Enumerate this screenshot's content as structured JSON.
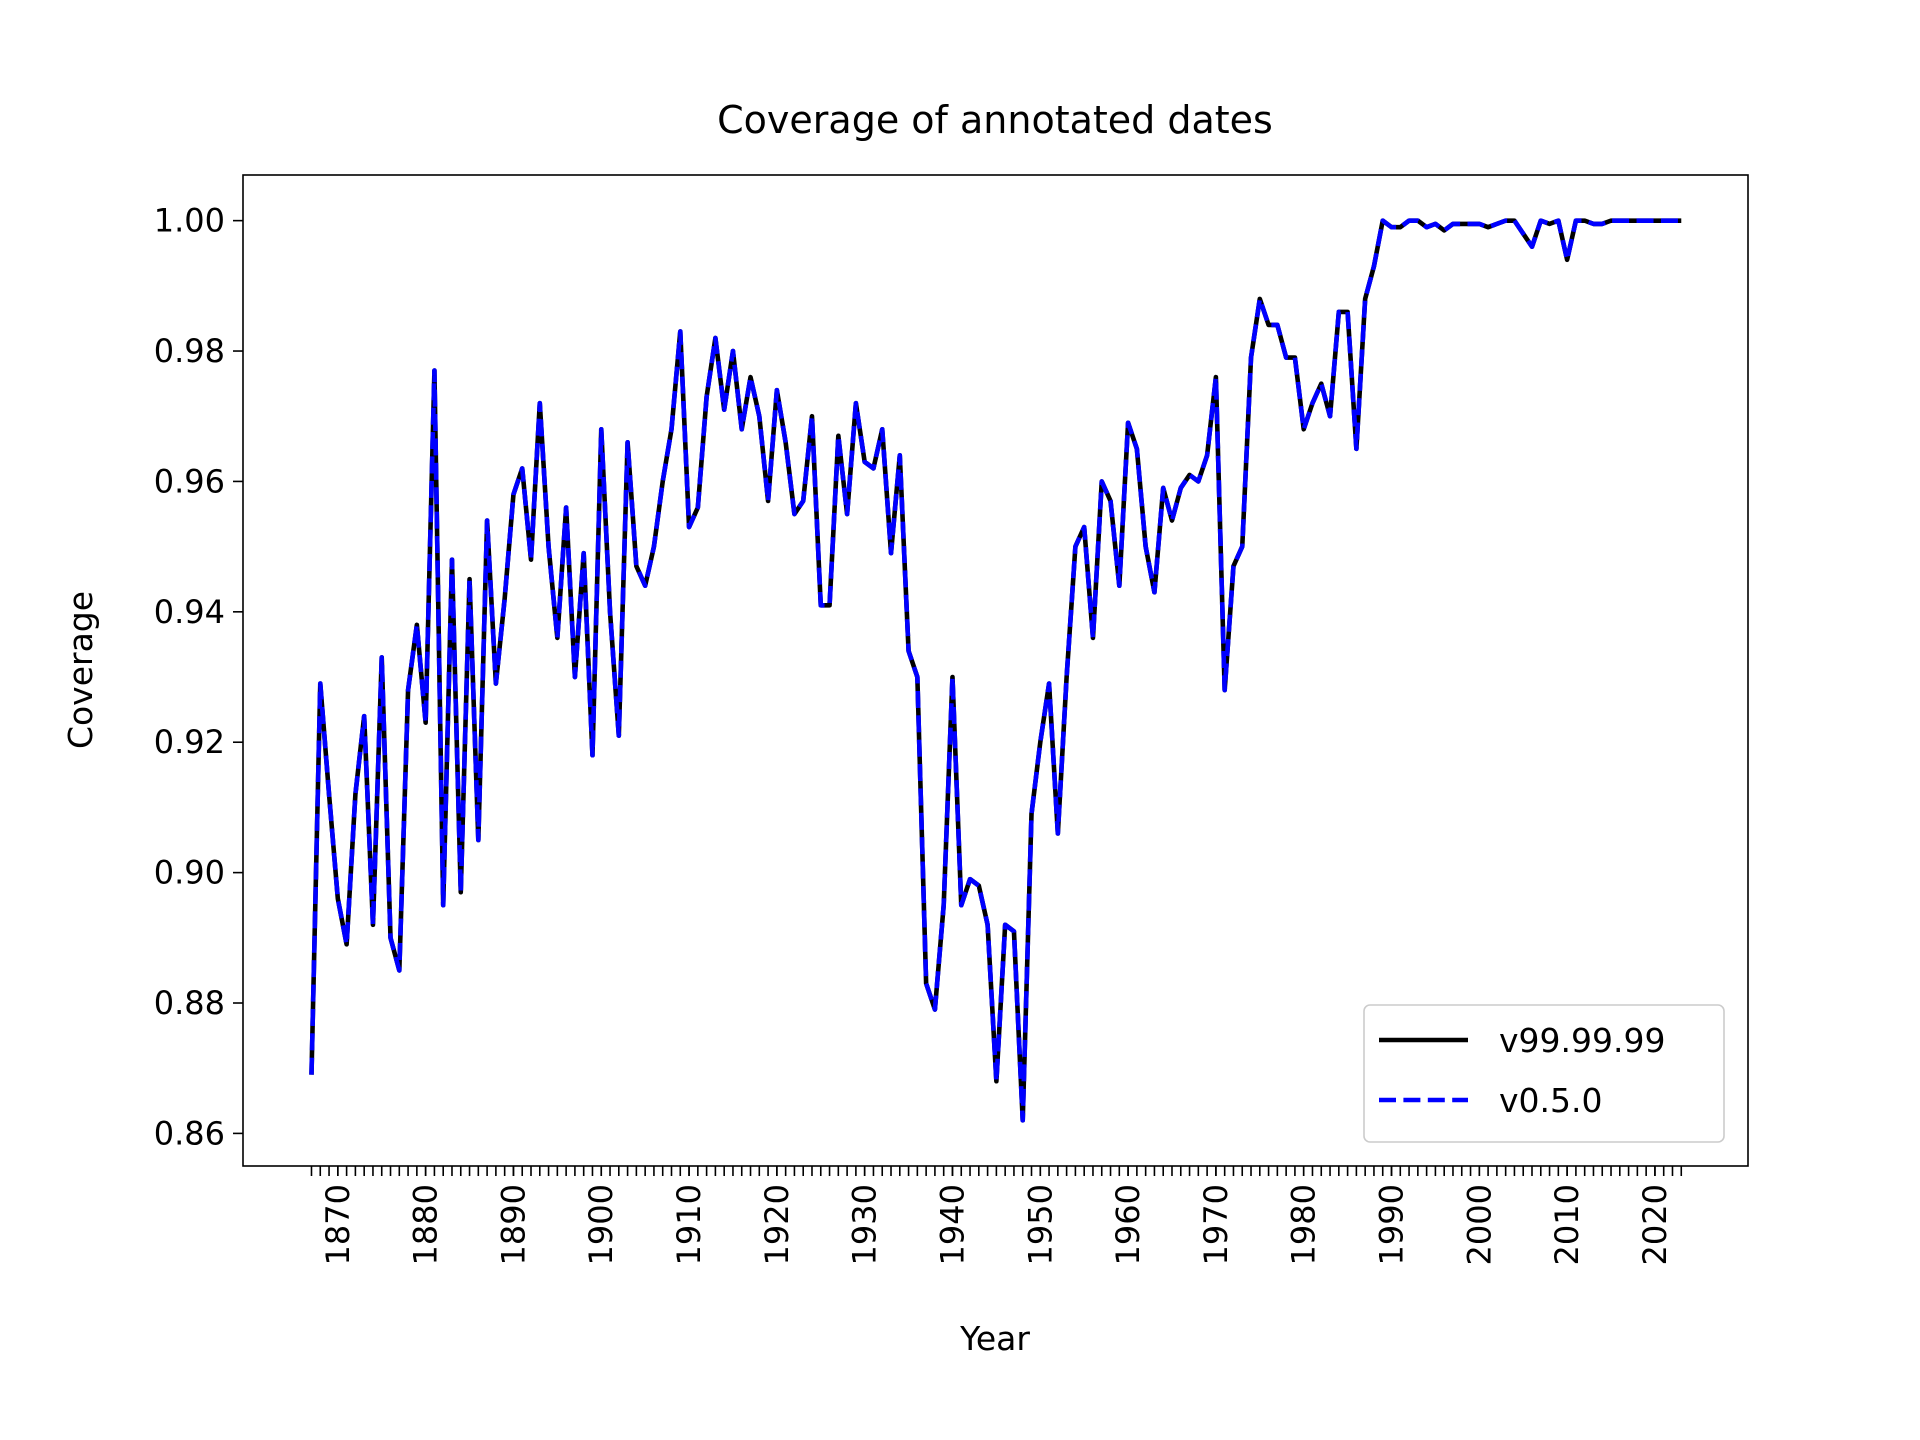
{
  "chart_data": {
    "type": "line",
    "title": "Coverage of annotated dates",
    "xlabel": "Year",
    "ylabel": "Coverage",
    "x": [
      1867,
      1868,
      1869,
      1870,
      1871,
      1872,
      1873,
      1874,
      1875,
      1876,
      1877,
      1878,
      1879,
      1880,
      1881,
      1882,
      1883,
      1884,
      1885,
      1886,
      1887,
      1888,
      1889,
      1890,
      1891,
      1892,
      1893,
      1894,
      1895,
      1896,
      1897,
      1898,
      1899,
      1900,
      1901,
      1902,
      1903,
      1904,
      1905,
      1906,
      1907,
      1908,
      1909,
      1910,
      1911,
      1912,
      1913,
      1914,
      1915,
      1916,
      1917,
      1918,
      1919,
      1920,
      1921,
      1922,
      1923,
      1924,
      1925,
      1926,
      1927,
      1928,
      1929,
      1930,
      1931,
      1932,
      1933,
      1934,
      1935,
      1936,
      1937,
      1938,
      1939,
      1940,
      1941,
      1942,
      1943,
      1944,
      1945,
      1946,
      1947,
      1948,
      1949,
      1950,
      1951,
      1952,
      1953,
      1954,
      1955,
      1956,
      1957,
      1958,
      1959,
      1960,
      1961,
      1962,
      1963,
      1964,
      1965,
      1966,
      1967,
      1968,
      1969,
      1970,
      1971,
      1972,
      1973,
      1974,
      1975,
      1976,
      1977,
      1978,
      1979,
      1980,
      1981,
      1982,
      1983,
      1984,
      1985,
      1986,
      1987,
      1988,
      1989,
      1990,
      1991,
      1992,
      1993,
      1994,
      1995,
      1996,
      1997,
      1998,
      1999,
      2000,
      2001,
      2002,
      2003,
      2004,
      2005,
      2006,
      2007,
      2008,
      2009,
      2010,
      2011,
      2012,
      2013,
      2014,
      2015,
      2016,
      2017,
      2018,
      2019,
      2020,
      2021,
      2022,
      2023
    ],
    "series": [
      {
        "name": "v99.99.99",
        "color": "#000000",
        "dash": false,
        "values": [
          0.869,
          0.929,
          0.912,
          0.896,
          0.889,
          0.912,
          0.924,
          0.892,
          0.933,
          0.89,
          0.885,
          0.928,
          0.938,
          0.923,
          0.977,
          0.895,
          0.948,
          0.897,
          0.945,
          0.905,
          0.954,
          0.929,
          0.942,
          0.958,
          0.962,
          0.948,
          0.972,
          0.95,
          0.936,
          0.956,
          0.93,
          0.949,
          0.918,
          0.968,
          0.94,
          0.921,
          0.966,
          0.947,
          0.944,
          0.95,
          0.96,
          0.968,
          0.983,
          0.953,
          0.956,
          0.973,
          0.982,
          0.971,
          0.98,
          0.968,
          0.976,
          0.97,
          0.957,
          0.974,
          0.966,
          0.955,
          0.957,
          0.97,
          0.941,
          0.941,
          0.967,
          0.955,
          0.972,
          0.963,
          0.962,
          0.968,
          0.949,
          0.964,
          0.934,
          0.93,
          0.883,
          0.879,
          0.895,
          0.93,
          0.895,
          0.899,
          0.898,
          0.892,
          0.868,
          0.892,
          0.891,
          0.862,
          0.909,
          0.92,
          0.929,
          0.906,
          0.93,
          0.95,
          0.953,
          0.936,
          0.96,
          0.957,
          0.944,
          0.969,
          0.965,
          0.95,
          0.943,
          0.959,
          0.954,
          0.959,
          0.961,
          0.96,
          0.964,
          0.976,
          0.928,
          0.947,
          0.95,
          0.979,
          0.988,
          0.984,
          0.984,
          0.979,
          0.979,
          0.968,
          0.972,
          0.975,
          0.97,
          0.986,
          0.986,
          0.965,
          0.988,
          0.993,
          1.0,
          0.999,
          0.999,
          1.0,
          1.0,
          0.999,
          0.9995,
          0.9985,
          0.9995,
          0.9995,
          0.9995,
          0.9995,
          0.999,
          0.9995,
          1.0,
          1.0,
          0.998,
          0.996,
          1.0,
          0.9995,
          1.0,
          0.994,
          1.0,
          1.0,
          0.9995,
          0.9995,
          1.0,
          1.0,
          1.0,
          1.0,
          1.0,
          1.0,
          1.0,
          1.0,
          1.0
        ]
      },
      {
        "name": "v0.5.0",
        "color": "#0000ff",
        "dash": true,
        "values": [
          0.869,
          0.929,
          0.912,
          0.896,
          0.889,
          0.912,
          0.924,
          0.892,
          0.933,
          0.89,
          0.885,
          0.928,
          0.938,
          0.923,
          0.977,
          0.895,
          0.948,
          0.897,
          0.945,
          0.905,
          0.954,
          0.929,
          0.942,
          0.958,
          0.962,
          0.948,
          0.972,
          0.95,
          0.936,
          0.956,
          0.93,
          0.949,
          0.918,
          0.968,
          0.94,
          0.921,
          0.966,
          0.947,
          0.944,
          0.95,
          0.96,
          0.968,
          0.983,
          0.953,
          0.956,
          0.973,
          0.982,
          0.971,
          0.98,
          0.968,
          0.976,
          0.97,
          0.957,
          0.974,
          0.966,
          0.955,
          0.957,
          0.97,
          0.941,
          0.941,
          0.967,
          0.955,
          0.972,
          0.963,
          0.962,
          0.968,
          0.949,
          0.964,
          0.934,
          0.93,
          0.883,
          0.879,
          0.895,
          0.93,
          0.895,
          0.899,
          0.898,
          0.892,
          0.868,
          0.892,
          0.891,
          0.862,
          0.909,
          0.92,
          0.929,
          0.906,
          0.93,
          0.95,
          0.953,
          0.936,
          0.96,
          0.957,
          0.944,
          0.969,
          0.965,
          0.95,
          0.943,
          0.959,
          0.954,
          0.959,
          0.961,
          0.96,
          0.964,
          0.976,
          0.928,
          0.947,
          0.95,
          0.979,
          0.988,
          0.984,
          0.984,
          0.979,
          0.979,
          0.968,
          0.972,
          0.975,
          0.97,
          0.986,
          0.986,
          0.965,
          0.988,
          0.993,
          1.0,
          0.999,
          0.999,
          1.0,
          1.0,
          0.999,
          0.9995,
          0.9985,
          0.9995,
          0.9995,
          0.9995,
          0.9995,
          0.999,
          0.9995,
          1.0,
          1.0,
          0.998,
          0.996,
          1.0,
          0.9995,
          1.0,
          0.994,
          1.0,
          1.0,
          0.9995,
          0.9995,
          1.0,
          1.0,
          1.0,
          1.0,
          1.0,
          1.0,
          1.0,
          1.0,
          1.0
        ]
      }
    ],
    "xlim": [
      1859.2,
      2030.6
    ],
    "ylim": [
      0.855,
      1.007
    ],
    "xticks": [
      1870,
      1880,
      1890,
      1900,
      1910,
      1920,
      1930,
      1940,
      1950,
      1960,
      1970,
      1980,
      1990,
      2000,
      2010,
      2020
    ],
    "yticks": [
      {
        "value": 0.86,
        "label": "0.86"
      },
      {
        "value": 0.88,
        "label": "0.88"
      },
      {
        "value": 0.9,
        "label": "0.90"
      },
      {
        "value": 0.92,
        "label": "0.92"
      },
      {
        "value": 0.94,
        "label": "0.94"
      },
      {
        "value": 0.96,
        "label": "0.96"
      },
      {
        "value": 0.98,
        "label": "0.98"
      },
      {
        "value": 1.0,
        "label": "1.00"
      }
    ],
    "grid": false,
    "legend": "lower right"
  }
}
